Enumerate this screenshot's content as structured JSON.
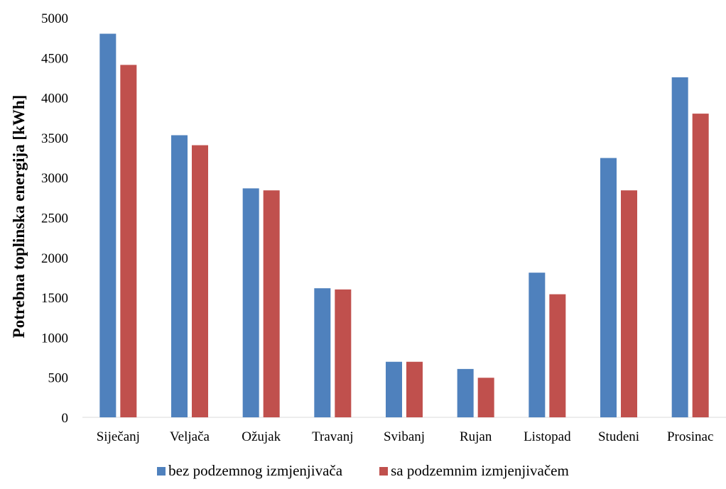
{
  "chart_data": {
    "type": "bar",
    "title": "",
    "xlabel": "",
    "ylabel": "Potrebna toplinska energija [kWh]",
    "ylim": [
      0,
      5000
    ],
    "yticks": [
      "0",
      "500",
      "1000",
      "1500",
      "2000",
      "2500",
      "3000",
      "3500",
      "4000",
      "4500",
      "5000"
    ],
    "grid": false,
    "legend_position": "bottom",
    "categories": [
      "Siječanj",
      "Veljača",
      "Ožujak",
      "Travanj",
      "Svibanj",
      "Rujan",
      "Listopad",
      "Studeni",
      "Prosinac"
    ],
    "series": [
      {
        "name": "bez podzemnog izmjenjivača",
        "color": "#4F81BD",
        "values": [
          4800,
          3530,
          2865,
          1615,
          695,
          605,
          1810,
          3245,
          4255
        ]
      },
      {
        "name": "sa podzemnim izmjenjivačem",
        "color": "#C0504D",
        "values": [
          4410,
          3405,
          2840,
          1600,
          695,
          495,
          1540,
          2840,
          3800
        ]
      }
    ]
  }
}
